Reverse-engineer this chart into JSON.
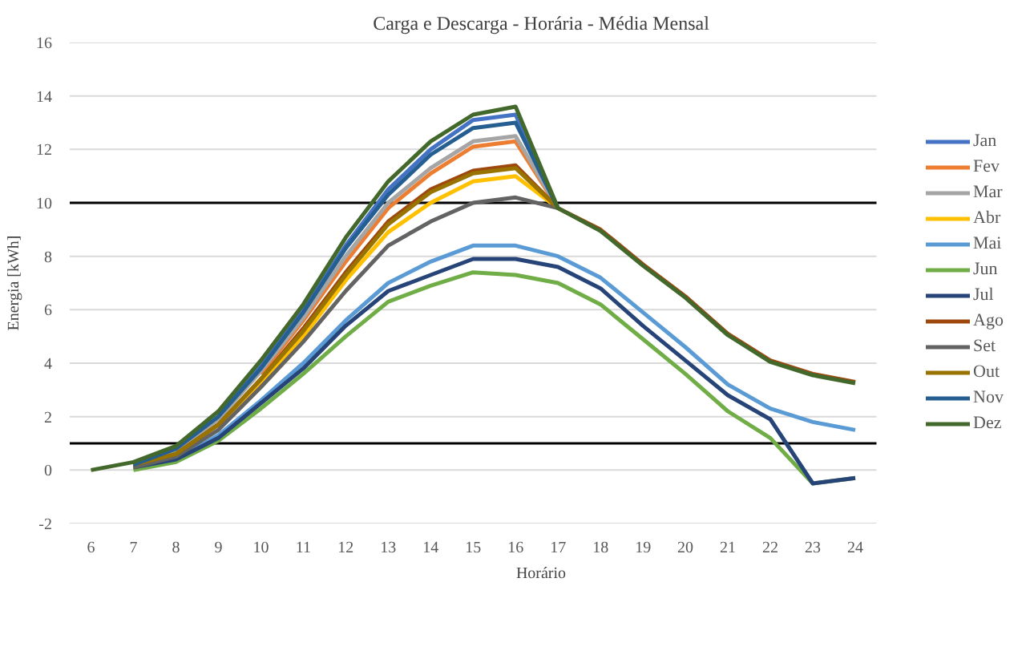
{
  "chart_data": {
    "type": "line",
    "title": "Carga e Descarga - Horária - Média Mensal",
    "xlabel": "Horário",
    "ylabel": "Energia [kWh]",
    "categories": [
      "6",
      "7",
      "8",
      "9",
      "10",
      "11",
      "12",
      "13",
      "14",
      "15",
      "16",
      "17",
      "18",
      "19",
      "20",
      "21",
      "22",
      "23",
      "24"
    ],
    "ylim": [
      -2,
      16
    ],
    "yticks": [
      -2,
      0,
      2,
      4,
      6,
      8,
      10,
      12,
      14,
      16
    ],
    "grid": "y",
    "legend": "right",
    "marker": "none",
    "line_style": "solid",
    "ref_lines": [
      {
        "axis": "y",
        "value": 10,
        "color": "#000000"
      },
      {
        "axis": "y",
        "value": 1,
        "color": "#000000"
      }
    ],
    "series": [
      {
        "name": "Jan",
        "color": "#4472c4",
        "values": [
          null,
          0.25,
          0.8,
          2.0,
          3.9,
          6.0,
          8.4,
          10.5,
          12.0,
          13.1,
          13.3,
          9.8,
          null,
          null,
          null,
          null,
          null,
          null,
          null
        ]
      },
      {
        "name": "Fev",
        "color": "#ed7d31",
        "values": [
          null,
          null,
          null,
          null,
          3.6,
          5.6,
          7.8,
          9.8,
          11.1,
          12.1,
          12.3,
          9.8,
          null,
          null,
          null,
          null,
          null,
          null,
          null
        ]
      },
      {
        "name": "Mar",
        "color": "#a5a5a5",
        "values": [
          null,
          0.2,
          0.7,
          1.9,
          3.7,
          5.7,
          8.0,
          10.0,
          11.3,
          12.3,
          12.5,
          9.8,
          null,
          null,
          null,
          null,
          null,
          null,
          null
        ]
      },
      {
        "name": "Abr",
        "color": "#ffc000",
        "values": [
          null,
          null,
          null,
          1.6,
          3.3,
          5.0,
          7.1,
          8.9,
          10.0,
          10.8,
          11.0,
          9.8,
          null,
          null,
          null,
          null,
          null,
          null,
          null
        ]
      },
      {
        "name": "Mai",
        "color": "#5b9bd5",
        "values": [
          null,
          0.1,
          0.4,
          1.3,
          2.6,
          4.0,
          5.6,
          7.0,
          7.8,
          8.4,
          8.4,
          8.0,
          7.2,
          5.9,
          4.6,
          3.2,
          2.3,
          1.8,
          1.5
        ]
      },
      {
        "name": "Jun",
        "color": "#70ad47",
        "values": [
          null,
          0.0,
          0.3,
          1.1,
          2.3,
          3.6,
          5.0,
          6.3,
          6.9,
          7.4,
          7.3,
          7.0,
          6.2,
          4.9,
          3.6,
          2.2,
          1.2,
          -0.5,
          -0.3
        ]
      },
      {
        "name": "Jul",
        "color": "#264478",
        "values": [
          null,
          0.1,
          0.4,
          1.2,
          2.5,
          3.8,
          5.4,
          6.7,
          7.3,
          7.9,
          7.9,
          7.6,
          6.8,
          5.4,
          4.1,
          2.8,
          1.9,
          -0.5,
          -0.3
        ]
      },
      {
        "name": "Ago",
        "color": "#9e480e",
        "values": [
          null,
          0.2,
          0.6,
          1.7,
          3.4,
          5.3,
          7.4,
          9.3,
          10.5,
          11.2,
          11.4,
          9.8,
          9.0,
          7.7,
          6.5,
          5.1,
          4.1,
          3.6,
          3.3
        ]
      },
      {
        "name": "Set",
        "color": "#636363",
        "values": [
          null,
          0.1,
          0.5,
          1.5,
          3.1,
          4.8,
          6.7,
          8.4,
          9.3,
          10.0,
          10.2,
          9.8,
          null,
          null,
          null,
          null,
          null,
          null,
          null
        ]
      },
      {
        "name": "Out",
        "color": "#997300",
        "values": [
          null,
          0.2,
          0.6,
          1.7,
          3.4,
          5.2,
          7.3,
          9.2,
          10.4,
          11.1,
          11.3,
          9.8,
          null,
          null,
          null,
          null,
          null,
          null,
          null
        ]
      },
      {
        "name": "Nov",
        "color": "#255e91",
        "values": [
          null,
          0.2,
          0.8,
          2.0,
          3.8,
          5.9,
          8.3,
          10.3,
          11.8,
          12.8,
          13.0,
          9.8,
          null,
          null,
          null,
          null,
          null,
          null,
          null
        ]
      },
      {
        "name": "Dez",
        "color": "#43682b",
        "values": [
          0.0,
          0.3,
          0.9,
          2.2,
          4.1,
          6.2,
          8.7,
          10.8,
          12.3,
          13.3,
          13.6,
          9.8,
          8.95,
          7.65,
          6.45,
          5.05,
          4.05,
          3.55,
          3.25
        ]
      }
    ]
  }
}
